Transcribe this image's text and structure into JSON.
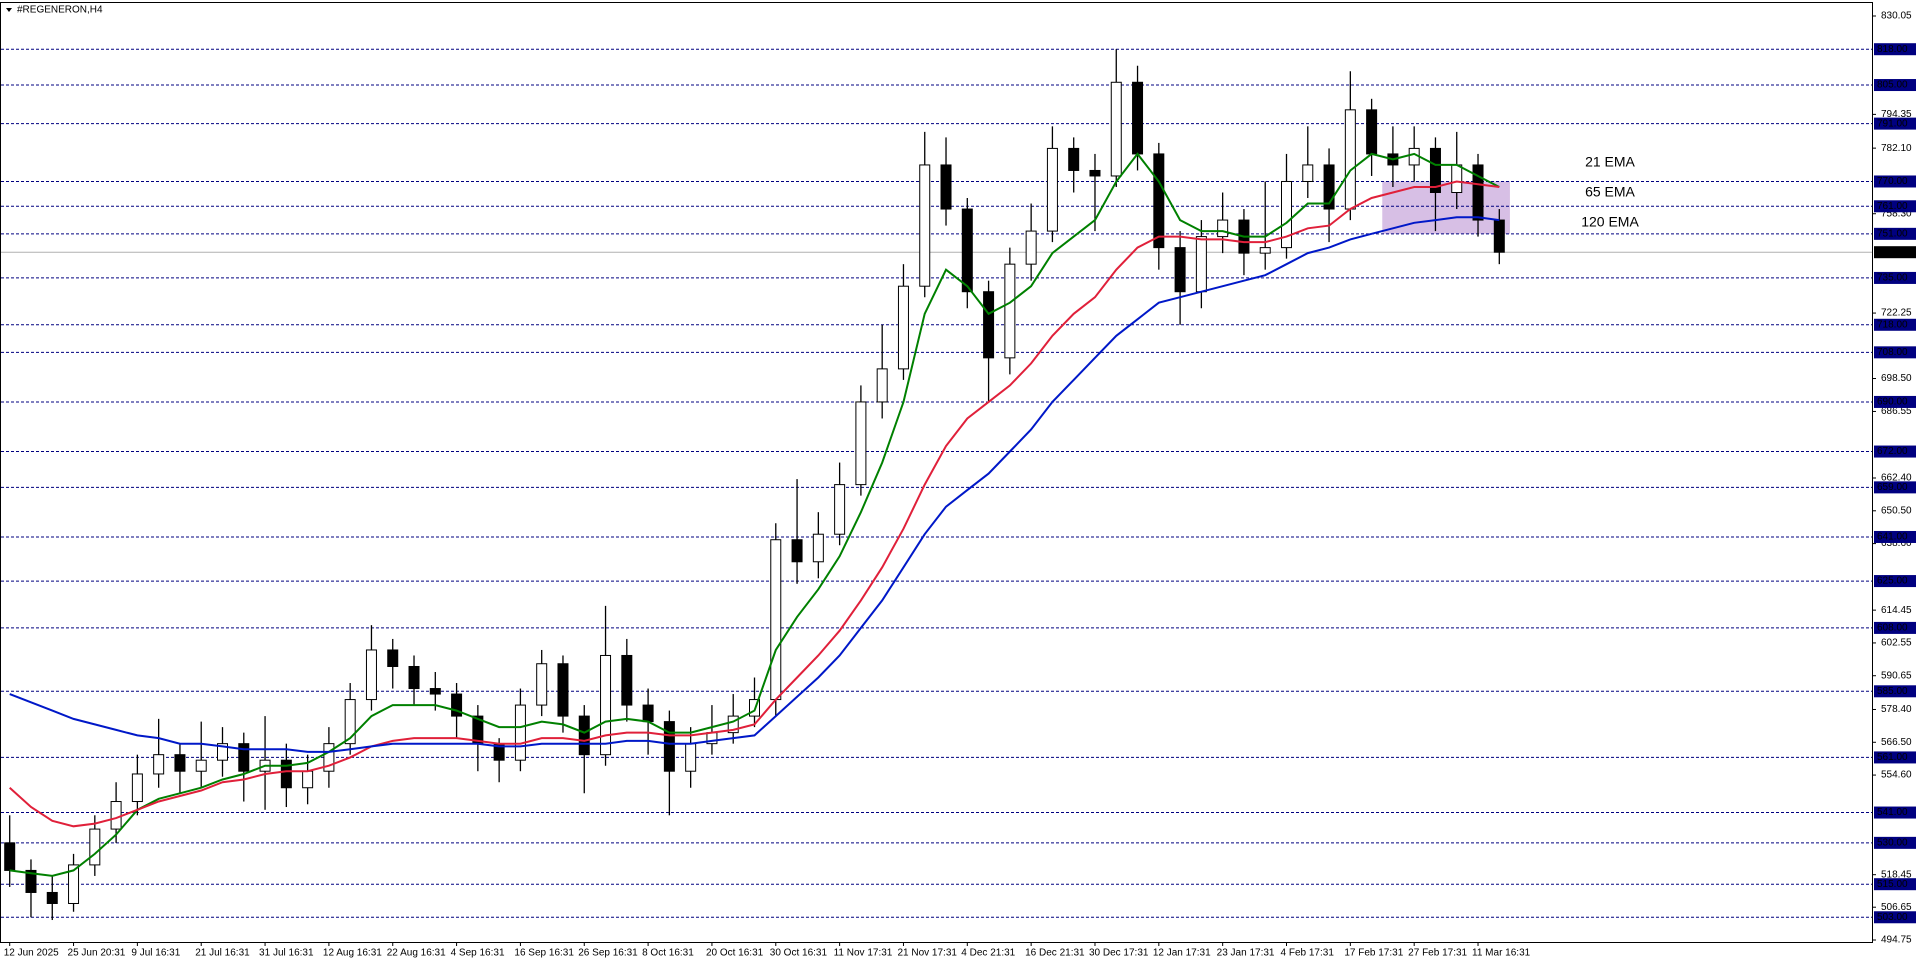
{
  "chart_data": {
    "type": "candlestick",
    "title": "#REGENERON,H4",
    "categories": [
      "12 Jun 2025",
      null,
      null,
      "25 Jun 20:31",
      null,
      null,
      "9 Jul 16:31",
      null,
      null,
      "21 Jul 16:31",
      null,
      null,
      "31 Jul 16:31",
      null,
      null,
      "12 Aug 16:31",
      null,
      null,
      "22 Aug 16:31",
      null,
      null,
      "4 Sep 16:31",
      null,
      null,
      "16 Sep 16:31",
      null,
      null,
      "26 Sep 16:31",
      null,
      null,
      "8 Oct 16:31",
      null,
      null,
      "20 Oct 16:31",
      null,
      null,
      "30 Oct 16:31",
      null,
      null,
      "11 Nov 17:31",
      null,
      null,
      "21 Nov 17:31",
      null,
      null,
      "4 Dec 21:31",
      null,
      null,
      "16 Dec 21:31",
      null,
      null,
      "30 Dec 17:31",
      null,
      null,
      "12 Jan 17:31",
      null,
      null,
      "23 Jan 17:31",
      null,
      null,
      "4 Feb 17:31",
      null,
      null,
      "17 Feb 17:31",
      null,
      null,
      "27 Feb 17:31",
      null,
      null,
      "11 Mar 16:31",
      null
    ],
    "open": [
      530,
      520,
      512,
      508,
      522,
      535,
      545,
      555,
      562,
      556,
      560,
      566,
      556,
      560,
      550,
      556,
      566,
      582,
      600,
      594,
      586,
      584,
      576,
      566,
      560,
      580,
      595,
      576,
      562,
      598,
      580,
      574,
      556,
      566,
      570,
      576,
      582,
      640,
      632,
      642,
      660,
      690,
      702,
      732,
      776,
      760,
      730,
      706,
      740,
      752,
      782,
      774,
      772,
      806,
      780,
      746,
      730,
      750,
      756,
      744,
      746,
      770,
      776,
      760,
      796,
      780,
      776,
      782,
      766,
      776,
      756
    ],
    "high": [
      540,
      524,
      518,
      526,
      540,
      552,
      562,
      575,
      566,
      574,
      572,
      570,
      576,
      566,
      562,
      572,
      588,
      609,
      604,
      598,
      592,
      588,
      580,
      568,
      586,
      600,
      598,
      580,
      616,
      604,
      586,
      578,
      572,
      580,
      584,
      590,
      646,
      662,
      650,
      668,
      696,
      718,
      740,
      788,
      786,
      764,
      734,
      746,
      762,
      790,
      786,
      780,
      818,
      812,
      784,
      752,
      756,
      766,
      760,
      770,
      780,
      790,
      782,
      810,
      800,
      790,
      790,
      786,
      788,
      780,
      760
    ],
    "low": [
      514,
      503,
      502,
      505,
      518,
      530,
      540,
      550,
      548,
      550,
      554,
      545,
      542,
      543,
      544,
      550,
      562,
      578,
      586,
      580,
      578,
      568,
      556,
      552,
      556,
      576,
      570,
      548,
      558,
      574,
      562,
      540,
      550,
      562,
      566,
      572,
      576,
      624,
      626,
      638,
      656,
      684,
      698,
      728,
      754,
      724,
      690,
      700,
      734,
      748,
      766,
      752,
      768,
      774,
      738,
      718,
      724,
      744,
      736,
      738,
      742,
      764,
      748,
      756,
      772,
      768,
      770,
      752,
      760,
      750,
      740
    ],
    "close": [
      520,
      512,
      508,
      522,
      535,
      545,
      555,
      562,
      556,
      560,
      566,
      556,
      560,
      550,
      556,
      566,
      582,
      600,
      594,
      586,
      584,
      576,
      566,
      560,
      580,
      595,
      576,
      562,
      598,
      580,
      574,
      556,
      566,
      570,
      576,
      582,
      640,
      632,
      642,
      660,
      690,
      702,
      732,
      776,
      760,
      730,
      706,
      740,
      752,
      782,
      774,
      772,
      806,
      780,
      746,
      730,
      750,
      756,
      744,
      746,
      770,
      776,
      760,
      796,
      780,
      776,
      782,
      766,
      776,
      756,
      744.34
    ],
    "series": [
      {
        "name": "21 EMA",
        "color": "#008000",
        "values": [
          520,
          519,
          518,
          520,
          526,
          533,
          542,
          546,
          548,
          550,
          553,
          555,
          558,
          558,
          559,
          563,
          568,
          576,
          580,
          580,
          580,
          578,
          575,
          572,
          572,
          574,
          573,
          570,
          574,
          575,
          574,
          570,
          570,
          572,
          574,
          578,
          600,
          612,
          622,
          634,
          650,
          668,
          690,
          722,
          738,
          732,
          722,
          726,
          732,
          744,
          750,
          756,
          770,
          780,
          770,
          756,
          752,
          752,
          750,
          750,
          755,
          762,
          762,
          774,
          780,
          778,
          780,
          776,
          776,
          772,
          768
        ]
      },
      {
        "name": "65 EMA",
        "color": "#e0203a",
        "values": [
          550,
          543,
          538,
          536,
          537,
          539,
          542,
          545,
          547,
          549,
          552,
          553,
          555,
          556,
          556,
          558,
          561,
          565,
          567,
          568,
          568,
          568,
          567,
          566,
          566,
          568,
          568,
          567,
          569,
          570,
          570,
          569,
          569,
          570,
          571,
          573,
          582,
          590,
          598,
          607,
          618,
          630,
          644,
          660,
          674,
          684,
          690,
          696,
          704,
          714,
          722,
          728,
          738,
          746,
          750,
          750,
          749,
          749,
          748,
          748,
          750,
          753,
          754,
          760,
          764,
          766,
          768,
          768,
          770,
          769,
          768
        ]
      },
      {
        "name": "120 EMA",
        "color": "#0018c8",
        "values": [
          584,
          581,
          578,
          575,
          573,
          571,
          569,
          568,
          566,
          566,
          565,
          564,
          564,
          564,
          563,
          563,
          564,
          565,
          566,
          566,
          566,
          566,
          566,
          565,
          565,
          566,
          566,
          566,
          566,
          567,
          567,
          566,
          566,
          567,
          568,
          569,
          576,
          583,
          590,
          598,
          608,
          618,
          630,
          642,
          652,
          658,
          664,
          672,
          680,
          690,
          698,
          706,
          714,
          720,
          726,
          728,
          730,
          732,
          734,
          736,
          740,
          744,
          746,
          749,
          751,
          753,
          755,
          756,
          757,
          757,
          756
        ]
      }
    ],
    "ylim": [
      494.75,
      830.05
    ],
    "yticks": [
      830.05,
      794.35,
      {
        "value": 782.1,
        "label": "782.10"
      },
      {
        "value": 758.3,
        "label": "758.30"
      },
      722.25,
      {
        "value": 698.5,
        "label": "698.50"
      },
      686.55,
      {
        "value": 662.4,
        "label": "662.40"
      },
      {
        "value": 650.5,
        "label": "650.50"
      },
      {
        "value": 638.6,
        "label": "638.60"
      },
      614.45,
      602.55,
      590.65,
      {
        "value": 578.4,
        "label": "578.40"
      },
      {
        "value": 566.5,
        "label": "566.50"
      },
      {
        "value": 554.6,
        "label": "554.60"
      },
      518.45,
      506.65,
      494.75
    ],
    "levels": [
      {
        "value": 818,
        "label": "818.00"
      },
      {
        "value": 805,
        "label": "805.00"
      },
      {
        "value": 791,
        "label": "791.00"
      },
      {
        "value": 770,
        "label": "770.00"
      },
      {
        "value": 761,
        "label": "761.00"
      },
      {
        "value": 751,
        "label": "751.00"
      },
      {
        "value": 735,
        "label": "735.00"
      },
      {
        "value": 718,
        "label": "718.00"
      },
      {
        "value": 708,
        "label": "708.00"
      },
      {
        "value": 690,
        "label": "690.00"
      },
      {
        "value": 672,
        "label": "672.00"
      },
      {
        "value": 659,
        "label": "659.00"
      },
      {
        "value": 641,
        "label": "641.00"
      },
      {
        "value": 625,
        "label": "625.00"
      },
      {
        "value": 608,
        "label": "608.00"
      },
      {
        "value": 585,
        "label": "585.00"
      },
      {
        "value": 561,
        "label": "561.00"
      },
      {
        "value": 541,
        "label": "541.00"
      },
      {
        "value": 530,
        "label": "530.00"
      },
      {
        "value": 515,
        "label": "515.00"
      },
      {
        "value": 503,
        "label": "503.00"
      }
    ],
    "level_color": "#000080",
    "zone": {
      "from": 751,
      "to": 770,
      "x_range": [
        65,
        71
      ],
      "color": "#c9a9dc"
    }
  }
}
